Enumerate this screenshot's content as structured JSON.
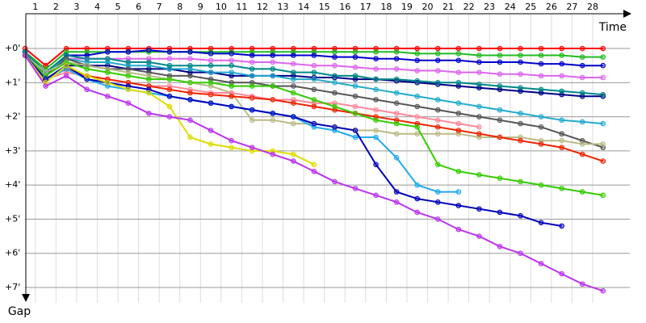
{
  "chart_data": {
    "type": "line",
    "x_label": "Time",
    "y_label": "Gap",
    "xlim": [
      0.5,
      29.8
    ],
    "ylim": [
      -0.9,
      7.45
    ],
    "xticks": [
      1,
      2,
      3,
      4,
      5,
      6,
      7,
      8,
      9,
      10,
      11,
      12,
      13,
      14,
      15,
      16,
      17,
      18,
      19,
      20,
      21,
      22,
      23,
      24,
      25,
      26,
      27,
      28
    ],
    "yticks": [
      {
        "value": 0,
        "label": "+0'"
      },
      {
        "value": 1,
        "label": "+1'"
      },
      {
        "value": 2,
        "label": "+2'"
      },
      {
        "value": 3,
        "label": "+3'"
      },
      {
        "value": 4,
        "label": "+4'"
      },
      {
        "value": 5,
        "label": "+5'"
      },
      {
        "value": 6,
        "label": "+6'"
      },
      {
        "value": 7,
        "label": "+7'"
      }
    ],
    "grid": true,
    "x": [
      0.5,
      1.5,
      2.5,
      3.5,
      4.5,
      5.5,
      6.5,
      7.5,
      8.5,
      9.5,
      10.5,
      11.5,
      12.5,
      13.5,
      14.5,
      15.5,
      16.5,
      17.5,
      18.5,
      19.5,
      20.5,
      21.5,
      22.5,
      23.5,
      24.5,
      25.5,
      26.5,
      27.5,
      28.5
    ],
    "series": [
      {
        "color": "#ff0000",
        "values": [
          0,
          0.5,
          0,
          0,
          0,
          0,
          0,
          0,
          0,
          0,
          0,
          0,
          0,
          0,
          0,
          0,
          0,
          0,
          0,
          0,
          0,
          0,
          0,
          0,
          0,
          0,
          0,
          0,
          0
        ]
      },
      {
        "color": "#22bb22",
        "values": [
          0.1,
          0.6,
          0.1,
          0.1,
          0.1,
          0.1,
          0.1,
          0.1,
          0.1,
          0.1,
          0.1,
          0.1,
          0.1,
          0.1,
          0.1,
          0.1,
          0.1,
          0.1,
          0.1,
          0.15,
          0.15,
          0.15,
          0.2,
          0.2,
          0.2,
          0.2,
          0.2,
          0.25,
          0.25
        ]
      },
      {
        "color": "#0000cc",
        "values": [
          0.1,
          0.8,
          0.2,
          0.2,
          0.1,
          0.1,
          0.05,
          0.1,
          0.1,
          0.15,
          0.15,
          0.2,
          0.2,
          0.2,
          0.2,
          0.25,
          0.25,
          0.3,
          0.3,
          0.35,
          0.35,
          0.35,
          0.4,
          0.4,
          0.4,
          0.45,
          0.45,
          0.5,
          0.5
        ]
      },
      {
        "color": "#dd66ee",
        "values": [
          0.2,
          0.7,
          0.3,
          0.3,
          0.3,
          0.3,
          0.3,
          0.3,
          0.3,
          0.35,
          0.35,
          0.4,
          0.4,
          0.45,
          0.5,
          0.5,
          0.55,
          0.6,
          0.6,
          0.65,
          0.65,
          0.7,
          0.7,
          0.75,
          0.75,
          0.8,
          0.8,
          0.85,
          0.85
        ]
      },
      {
        "color": "#000088",
        "values": [
          0.2,
          0.9,
          0.5,
          0.5,
          0.5,
          0.6,
          0.6,
          0.6,
          0.7,
          0.7,
          0.8,
          0.8,
          0.8,
          0.8,
          0.85,
          0.85,
          0.9,
          0.9,
          0.95,
          1.0,
          1.05,
          1.1,
          1.15,
          1.2,
          1.25,
          1.3,
          1.35,
          1.4,
          1.4
        ]
      },
      {
        "color": "#22aacc",
        "values": [
          0.1,
          0.7,
          0.3,
          0.4,
          0.4,
          0.5,
          0.5,
          0.6,
          0.6,
          0.7,
          0.7,
          0.8,
          0.8,
          0.9,
          0.9,
          1.0,
          1.1,
          1.2,
          1.3,
          1.4,
          1.5,
          1.6,
          1.7,
          1.8,
          1.9,
          2.0,
          2.1,
          2.15,
          2.2
        ]
      },
      {
        "color": "#008888",
        "values": [
          0.1,
          0.7,
          0.2,
          0.3,
          0.3,
          0.4,
          0.4,
          0.5,
          0.5,
          0.5,
          0.5,
          0.6,
          0.6,
          0.7,
          0.7,
          0.8,
          0.8,
          0.9,
          0.9,
          0.95,
          1.0,
          1.0,
          1.05,
          1.1,
          1.15,
          1.2,
          1.25,
          1.3,
          1.35
        ]
      },
      {
        "color": "#555555",
        "values": [
          0.2,
          0.8,
          0.3,
          0.5,
          0.6,
          0.6,
          0.7,
          0.8,
          0.8,
          0.9,
          1.0,
          1.0,
          1.1,
          1.1,
          1.2,
          1.3,
          1.4,
          1.5,
          1.6,
          1.7,
          1.8,
          1.9,
          2.0,
          2.1,
          2.2,
          2.3,
          2.5,
          2.7,
          2.9
        ]
      },
      {
        "color": "#bbbb88",
        "values": [
          0.2,
          0.7,
          0.4,
          0.5,
          0.6,
          0.7,
          0.8,
          0.9,
          1.0,
          1.1,
          1.3,
          2.1,
          2.1,
          2.2,
          2.2,
          2.3,
          2.4,
          2.4,
          2.5,
          2.5,
          2.5,
          2.5,
          2.6,
          2.6,
          2.6,
          2.7,
          2.7,
          2.8,
          2.8
        ]
      },
      {
        "color": "#ff8899",
        "values": [
          0.2,
          0.9,
          0.7,
          0.8,
          0.9,
          1.0,
          1.1,
          1.1,
          1.2,
          1.3,
          1.3,
          1.4,
          1.5,
          1.5,
          1.6,
          1.6,
          1.7,
          1.8,
          1.9,
          2.0,
          2.1,
          2.2,
          2.3,
          null,
          null,
          null,
          null,
          null,
          null
        ]
      },
      {
        "color": "#ee2200",
        "values": [
          0.2,
          0.9,
          0.6,
          0.8,
          0.9,
          1.0,
          1.1,
          1.2,
          1.3,
          1.35,
          1.4,
          1.45,
          1.5,
          1.6,
          1.7,
          1.8,
          1.9,
          2.0,
          2.1,
          2.2,
          2.3,
          2.4,
          2.5,
          2.6,
          2.7,
          2.8,
          2.9,
          3.1,
          3.3
        ]
      },
      {
        "color": "#33cc00",
        "values": [
          0.2,
          0.8,
          0.4,
          0.6,
          0.7,
          0.8,
          0.9,
          0.9,
          1.0,
          1.0,
          1.1,
          1.1,
          1.1,
          1.3,
          1.5,
          1.7,
          1.9,
          2.1,
          2.2,
          2.3,
          3.4,
          3.6,
          3.7,
          3.8,
          3.9,
          4.0,
          4.1,
          4.2,
          4.3
        ]
      },
      {
        "color": "#22aaee",
        "values": [
          0.2,
          0.9,
          0.6,
          0.9,
          1.1,
          1.2,
          1.3,
          1.4,
          1.5,
          1.6,
          1.7,
          1.8,
          1.9,
          2.0,
          2.3,
          2.4,
          2.6,
          2.6,
          3.2,
          4.0,
          4.2,
          4.2,
          null,
          null,
          null,
          null,
          null,
          null,
          null
        ]
      },
      {
        "color": "#0000bb",
        "values": [
          0.2,
          0.9,
          0.5,
          0.9,
          1.0,
          1.1,
          1.2,
          1.4,
          1.5,
          1.6,
          1.7,
          1.8,
          1.9,
          2.0,
          2.2,
          2.3,
          2.4,
          3.4,
          4.2,
          4.4,
          4.5,
          4.6,
          4.7,
          4.8,
          4.9,
          5.1,
          5.2,
          null,
          null
        ]
      },
      {
        "color": "#dddd00",
        "values": [
          0.2,
          1.0,
          0.5,
          0.8,
          1.0,
          1.2,
          1.3,
          1.7,
          2.6,
          2.8,
          2.9,
          3.0,
          3.0,
          3.1,
          3.4,
          null,
          null,
          null,
          null,
          null,
          null,
          null,
          null,
          null,
          null,
          null,
          null,
          null,
          null
        ]
      },
      {
        "color": "#bb33ee",
        "values": [
          0.2,
          1.1,
          0.8,
          1.2,
          1.4,
          1.6,
          1.9,
          2.0,
          2.1,
          2.4,
          2.7,
          2.9,
          3.1,
          3.3,
          3.6,
          3.9,
          4.1,
          4.3,
          4.5,
          4.8,
          5.0,
          5.3,
          5.5,
          5.8,
          6.0,
          6.3,
          6.6,
          6.9,
          7.1
        ]
      }
    ]
  }
}
